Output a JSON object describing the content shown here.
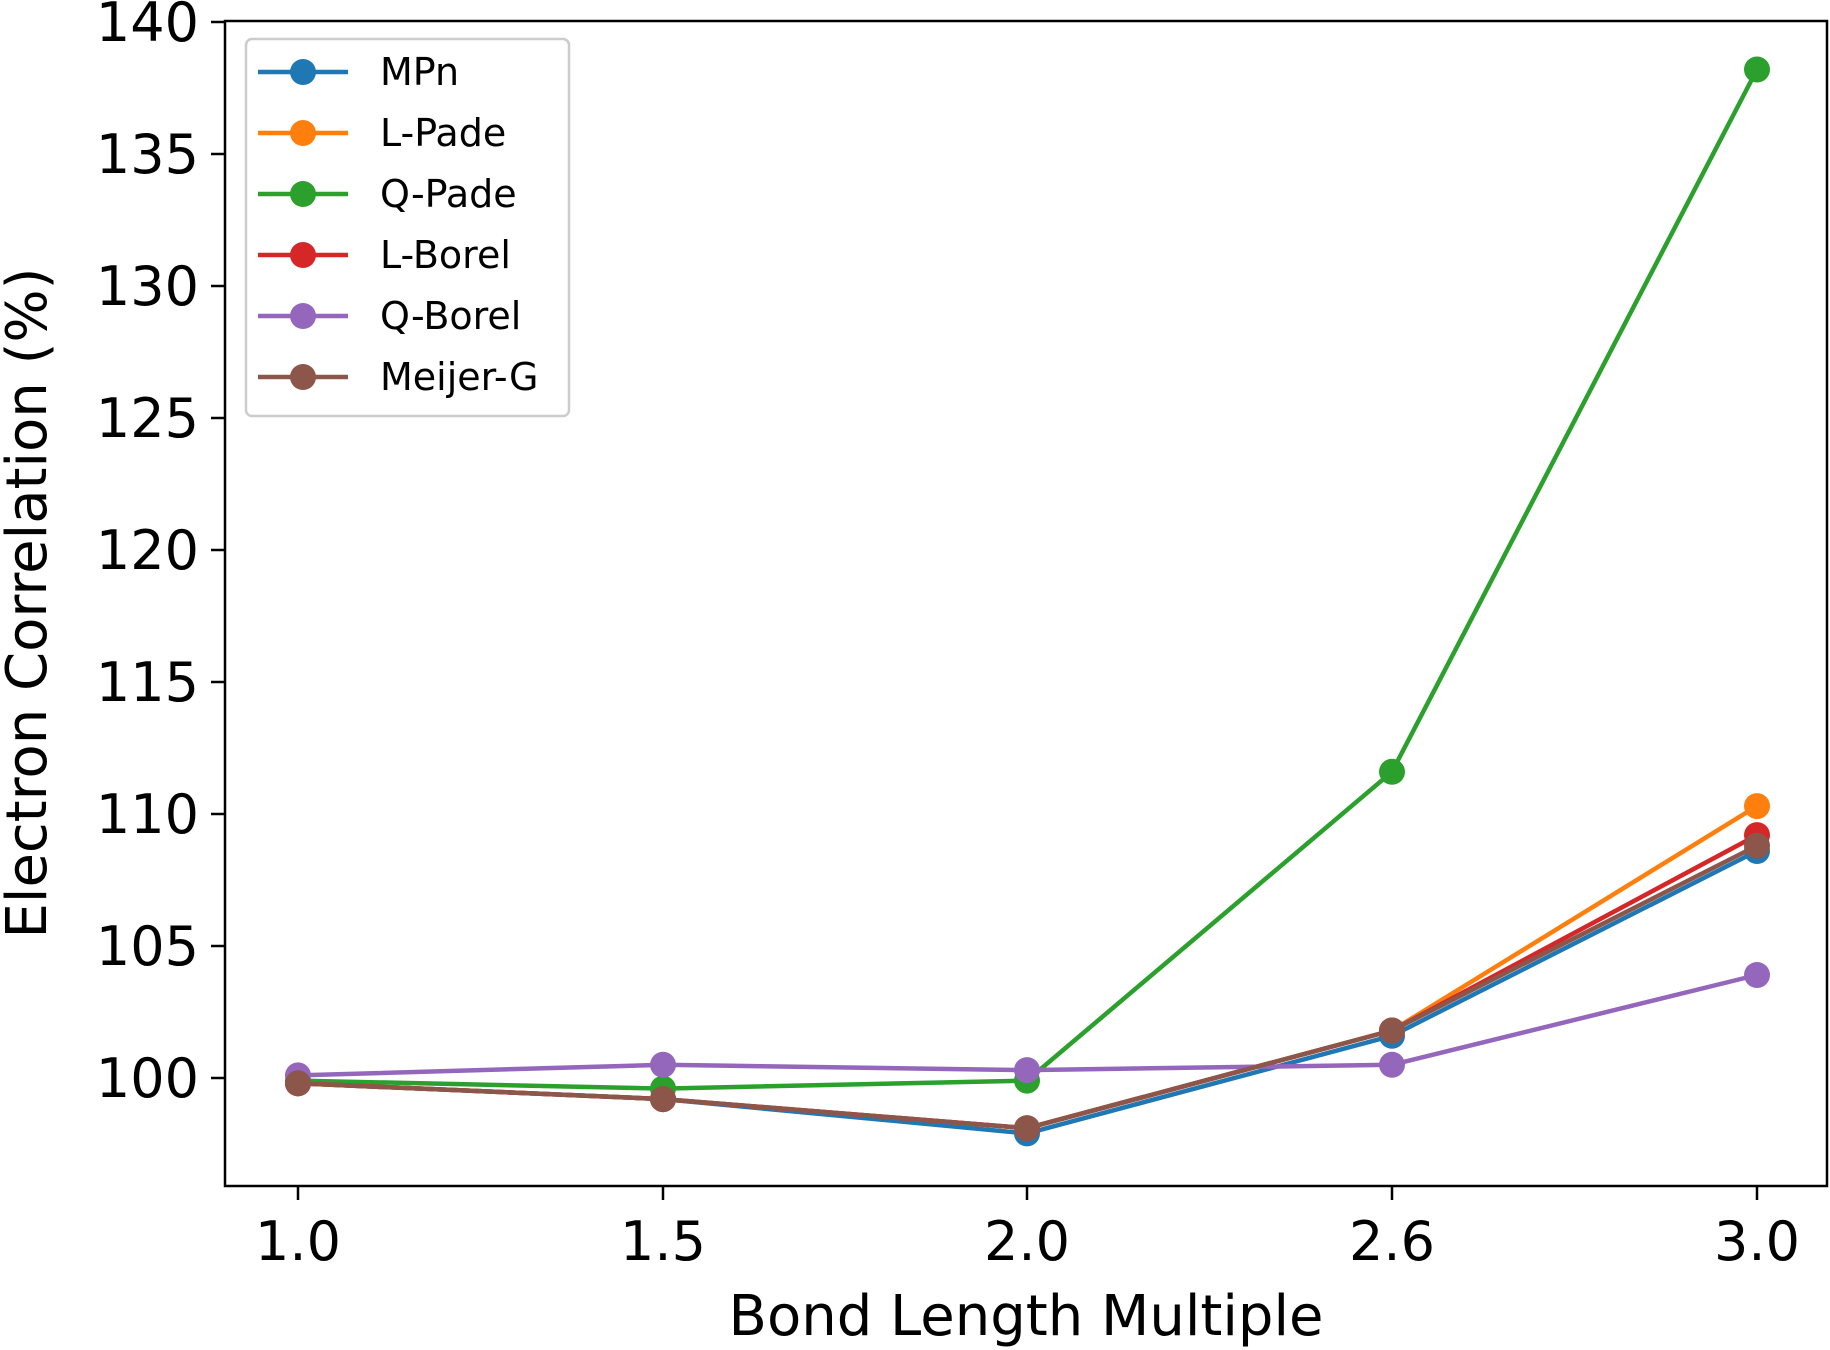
{
  "chart_data": {
    "type": "line",
    "title": "",
    "xlabel": "Bond Length Multiple",
    "ylabel": "Electron Correlation (%)",
    "categories": [
      "1.0",
      "1.5",
      "2.0",
      "2.6",
      "3.0"
    ],
    "yticks": [
      "100",
      "105",
      "110",
      "115",
      "120",
      "125",
      "130",
      "135",
      "140"
    ],
    "ylim": [
      96,
      140
    ],
    "legend_position": "upper-left",
    "series": [
      {
        "name": "MPn",
        "color": "#1f77b4",
        "values": [
          99.8,
          99.2,
          97.9,
          101.6,
          108.6
        ]
      },
      {
        "name": "L-Pade",
        "color": "#ff7f0e",
        "values": [
          99.8,
          99.2,
          98.1,
          101.8,
          110.3
        ]
      },
      {
        "name": "Q-Pade",
        "color": "#2ca02c",
        "values": [
          99.9,
          99.6,
          99.9,
          111.6,
          138.2
        ]
      },
      {
        "name": "L-Borel",
        "color": "#d62728",
        "values": [
          99.8,
          99.2,
          98.1,
          101.8,
          109.2
        ]
      },
      {
        "name": "Q-Borel",
        "color": "#9467bd",
        "values": [
          100.1,
          100.5,
          100.3,
          100.5,
          103.9
        ]
      },
      {
        "name": "Meijer-G",
        "color": "#8c564b",
        "values": [
          99.8,
          99.2,
          98.1,
          101.8,
          108.8
        ]
      }
    ]
  }
}
